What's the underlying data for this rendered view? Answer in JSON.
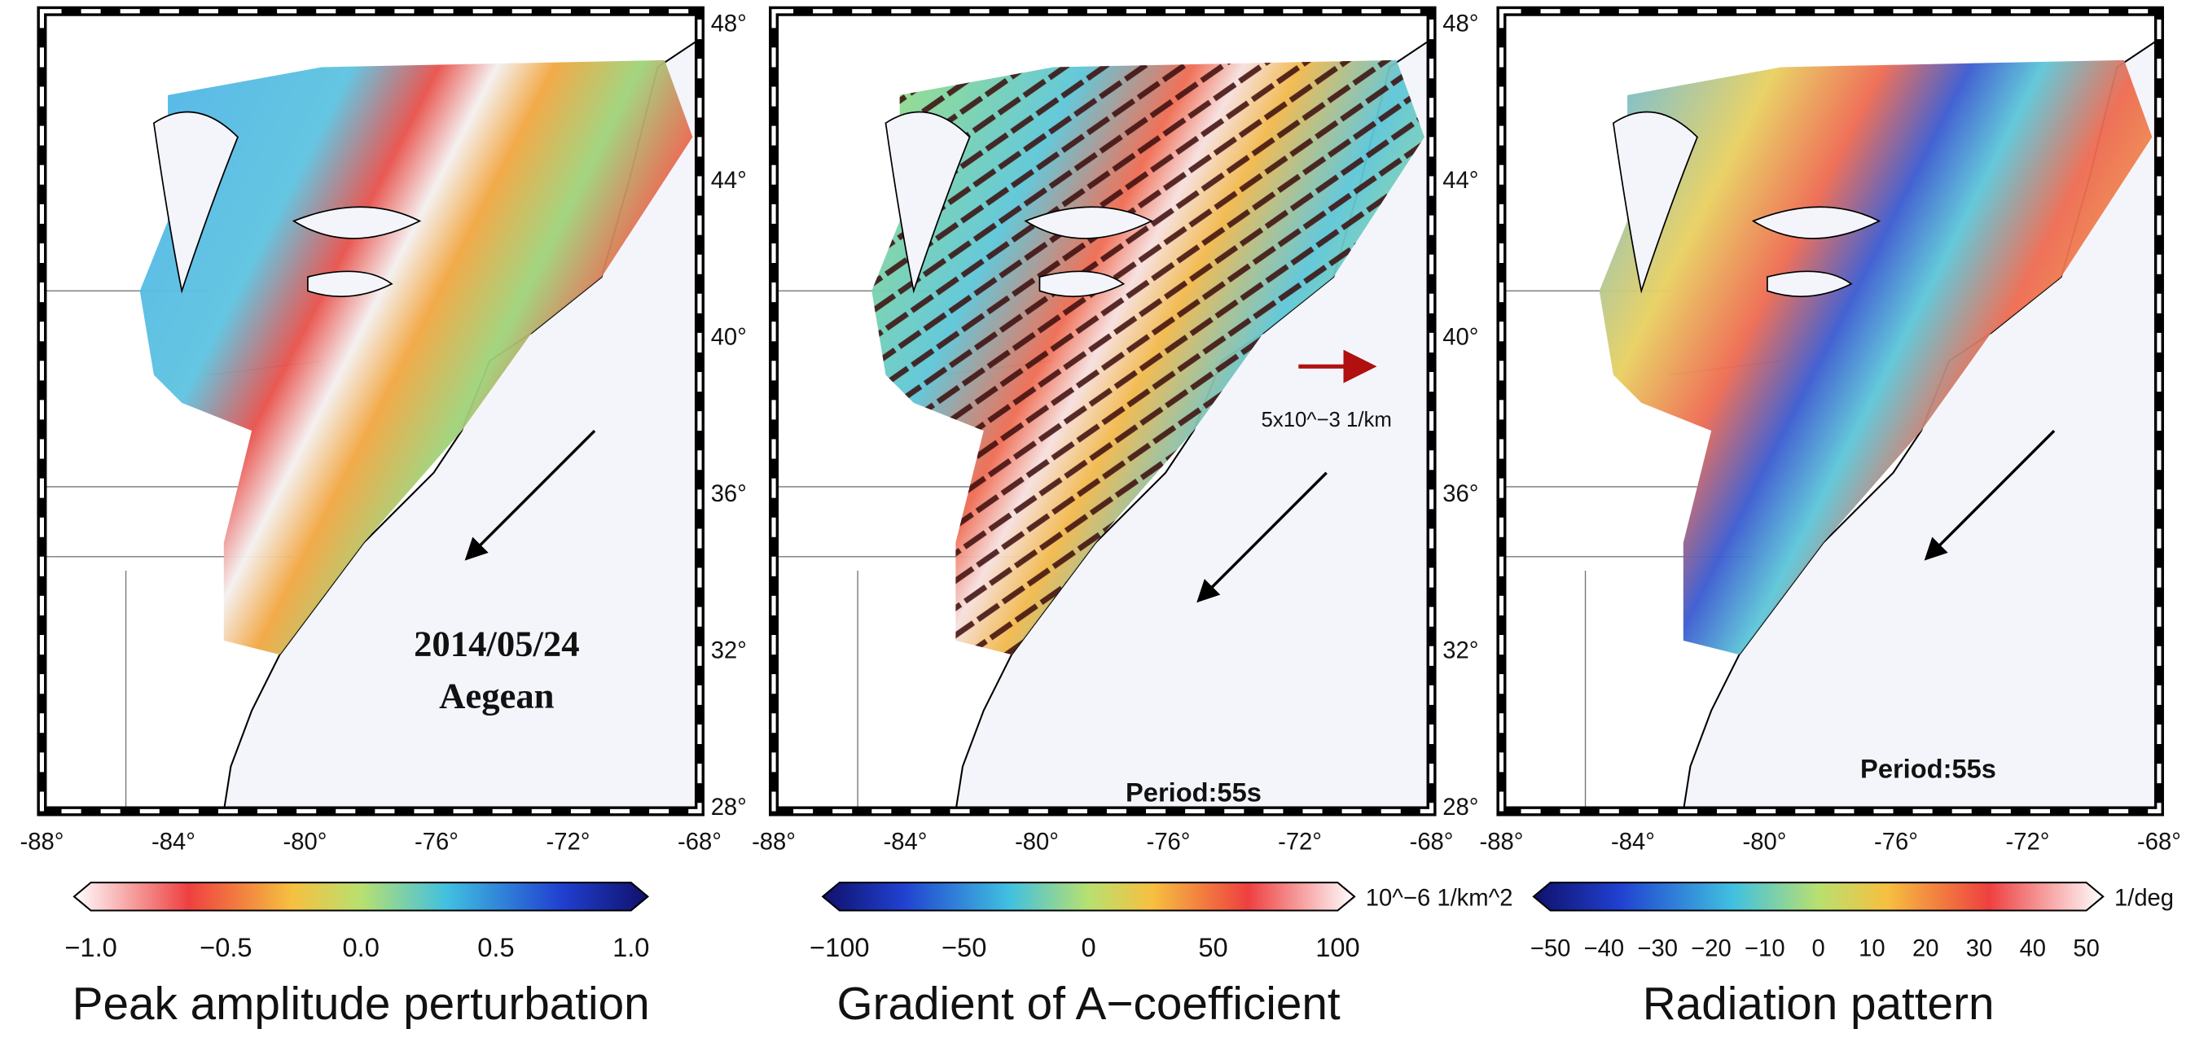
{
  "panels": [
    {
      "lon_labels": [
        "-88°",
        "-84°",
        "-80°",
        "-76°",
        "-72°",
        "-68°"
      ],
      "lat_labels": [
        "48°",
        "44°",
        "40°",
        "36°",
        "32°",
        "28°"
      ],
      "annotations": [
        "2014/05/24",
        "Aegean"
      ],
      "colorbar": {
        "ticks": [
          "−1.0",
          "−0.5",
          "0.0",
          "0.5",
          "1.0"
        ]
      },
      "title": "Peak amplitude perturbation"
    },
    {
      "lon_labels": [
        "-88°",
        "-84°",
        "-80°",
        "-76°",
        "-72°",
        "-68°"
      ],
      "lat_labels": [
        "48°",
        "44°",
        "40°",
        "36°",
        "32°",
        "28°"
      ],
      "annotations": [
        "5x10^−3 1/km",
        "Period:55s"
      ],
      "colorbar": {
        "ticks": [
          "−100",
          "−50",
          "0",
          "50",
          "100"
        ],
        "unit": "10^−6 1/km^2"
      },
      "title": "Gradient of A−coefficient"
    },
    {
      "lon_labels": [
        "-88°",
        "-84°",
        "-80°",
        "-76°",
        "-72°",
        "-68°"
      ],
      "annotations": [
        "Period:55s"
      ],
      "colorbar": {
        "ticks": [
          "−50",
          "−40",
          "−30",
          "−20",
          "−10",
          "0",
          "10",
          "20",
          "30",
          "40",
          "50"
        ],
        "unit": "1/deg"
      },
      "title": "Radiation pattern"
    }
  ]
}
